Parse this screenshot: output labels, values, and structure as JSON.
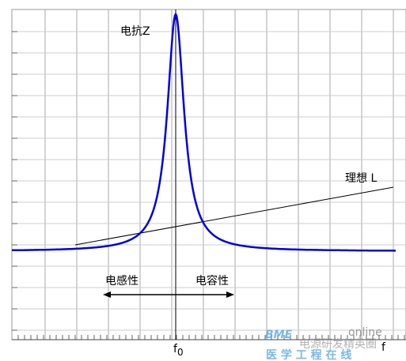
{
  "labels": {
    "reactance": "电抗Z",
    "ideal": "理想 L",
    "inductive": "电感性",
    "capacitive": "电容性",
    "f0_base": "f",
    "f0_sub": "0",
    "f_axis": "f"
  },
  "watermark": {
    "logo": "BME",
    "logo_suffix": "online",
    "line1": "电源研发精英圈",
    "line2": "医 学 工 程 在 线"
  }
}
